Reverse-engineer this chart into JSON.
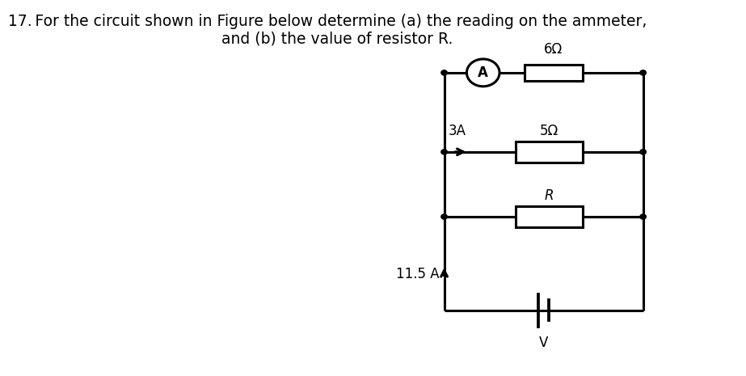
{
  "title_line1": "17. For the circuit shown in Figure below determine (a) the reading on the ammeter,",
  "title_line2": "    and (b) the value of resistor R.",
  "background_color": "#ffffff",
  "circuit_color": "#000000",
  "line_width": 2.2,
  "label_6ohm": "6Ω",
  "label_5ohm": "5Ω",
  "label_R": "R",
  "label_3A": "3A",
  "label_11p5A": "11.5 A",
  "label_A": "A",
  "label_V": "V",
  "font_size_labels": 12,
  "font_size_title": 13.5
}
